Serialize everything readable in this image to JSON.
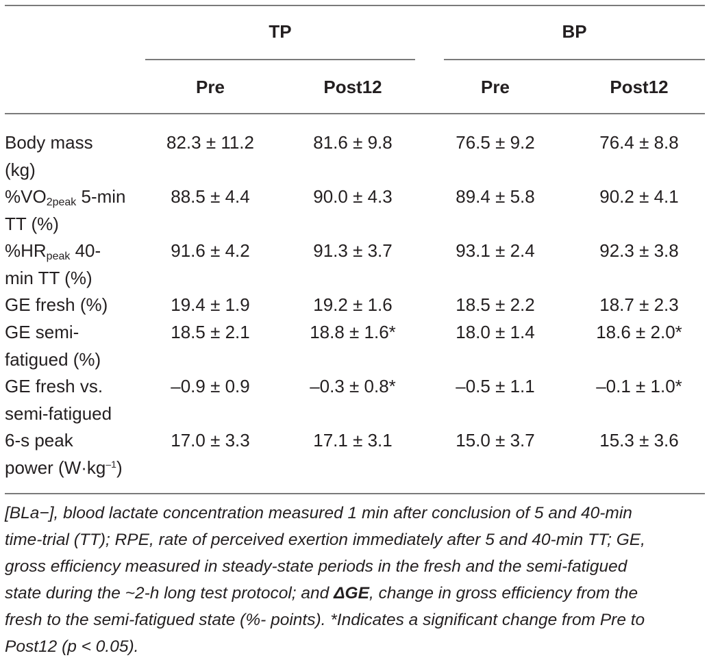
{
  "header": {
    "groups": [
      "TP",
      "BP"
    ],
    "columns": [
      "Pre",
      "Post12",
      "Pre",
      "Post12"
    ]
  },
  "rows": [
    {
      "label_lines": [
        "Body mass",
        "(kg)"
      ],
      "values": [
        "82.3 ± 11.2",
        "81.6 ± 9.8",
        "76.5 ± 9.2",
        "76.4 ± 8.8"
      ]
    },
    {
      "label_lines": [
        "%VO",
        "2peak",
        " 5-min",
        "TT (%)"
      ],
      "values": [
        "88.5 ± 4.4",
        "90.0 ± 4.3",
        "89.4 ± 5.8",
        "90.2 ± 4.1"
      ]
    },
    {
      "label_lines": [
        "%HR",
        "peak",
        " 40-",
        "min TT (%)"
      ],
      "values": [
        "91.6 ± 4.2",
        "91.3 ± 3.7",
        "93.1 ± 2.4",
        "92.3 ± 3.8"
      ]
    },
    {
      "label_lines": [
        "GE fresh (%)"
      ],
      "values": [
        "19.4 ± 1.9",
        "19.2 ± 1.6",
        "18.5 ± 2.2",
        "18.7 ± 2.3"
      ]
    },
    {
      "label_lines": [
        "GE semi-",
        "fatigued (%)"
      ],
      "values": [
        "18.5 ± 2.1",
        "18.8 ± 1.6*",
        "18.0 ± 1.4",
        "18.6 ± 2.0*"
      ]
    },
    {
      "label_lines": [
        "GE fresh vs.",
        "semi-fatigued"
      ],
      "values": [
        "–0.9 ± 0.9",
        "–0.3 ± 0.8*",
        "–0.5 ± 1.1",
        "–0.1 ± 1.0*"
      ]
    },
    {
      "label_lines": [
        "6-s peak",
        "power (W·kg",
        "–1",
        ")"
      ],
      "values": [
        "17.0 ± 3.3",
        "17.1 ± 3.1",
        "15.0 ± 3.7",
        "15.3 ± 3.6"
      ]
    }
  ],
  "footnote": {
    "lines": [
      "[BLa−], blood lactate concentration measured 1 min after conclusion of 5 and 40-min",
      "time-trial (TT); RPE, rate of perceived exertion immediately after 5 and 40-min TT; GE,",
      "gross efficiency measured in steady-state periods in the fresh and the semi-fatigued",
      "state during the ~2-h long test protocol; and ",
      "ΔGE",
      ", change in gross efficiency from the",
      "fresh to the semi-fatigued state (%- points). *Indicates a significant change from Pre to",
      "Post12 (p < 0.05)."
    ]
  }
}
